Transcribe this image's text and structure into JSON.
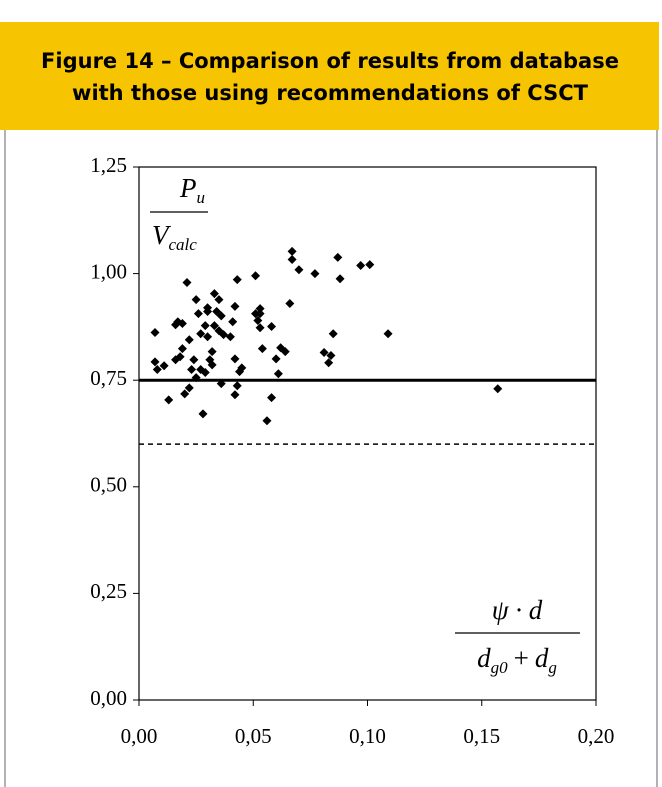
{
  "chart_data": {
    "type": "scatter",
    "title_lines": [
      "Figure 14 – Comparison of results from database",
      "with those using recommendations of CSCT"
    ],
    "y_label": {
      "num": "P",
      "num_sub": "u",
      "den": "V",
      "den_sub": "calc"
    },
    "x_label": {
      "num": "ψ · d",
      "den_1": "d",
      "den_1_sub": "g0",
      "den_op": "+",
      "den_2": "d",
      "den_2_sub": "g"
    },
    "color": "#000000",
    "x": [
      0.007,
      0.008,
      0.007,
      0.011,
      0.013,
      0.016,
      0.017,
      0.019,
      0.019,
      0.016,
      0.018,
      0.021,
      0.022,
      0.023,
      0.024,
      0.02,
      0.022,
      0.025,
      0.025,
      0.027,
      0.026,
      0.027,
      0.029,
      0.028,
      0.029,
      0.03,
      0.03,
      0.03,
      0.031,
      0.032,
      0.032,
      0.033,
      0.035,
      0.035,
      0.033,
      0.037,
      0.036,
      0.034,
      0.041,
      0.042,
      0.04,
      0.042,
      0.044,
      0.045,
      0.042,
      0.043,
      0.036,
      0.043,
      0.051,
      0.051,
      0.053,
      0.053,
      0.052,
      0.053,
      0.054,
      0.056,
      0.058,
      0.058,
      0.06,
      0.061,
      0.062,
      0.064,
      0.066,
      0.067,
      0.067,
      0.07,
      0.077,
      0.081,
      0.083,
      0.084,
      0.085,
      0.087,
      0.088,
      0.097,
      0.101,
      0.109,
      0.157
    ],
    "y": [
      0.793,
      0.775,
      0.862,
      0.784,
      0.704,
      0.88,
      0.887,
      0.883,
      0.824,
      0.798,
      0.805,
      0.979,
      0.845,
      0.775,
      0.798,
      0.718,
      0.732,
      0.756,
      0.939,
      0.775,
      0.906,
      0.859,
      0.768,
      0.671,
      0.878,
      0.92,
      0.911,
      0.852,
      0.798,
      0.786,
      0.817,
      0.878,
      0.866,
      0.939,
      0.953,
      0.857,
      0.901,
      0.911,
      0.887,
      0.923,
      0.852,
      0.8,
      0.77,
      0.779,
      0.716,
      0.737,
      0.742,
      0.986,
      0.995,
      0.906,
      0.906,
      0.918,
      0.89,
      0.873,
      0.824,
      0.655,
      0.709,
      0.876,
      0.8,
      0.765,
      0.826,
      0.817,
      0.93,
      1.052,
      1.033,
      1.009,
      1.0,
      0.815,
      0.791,
      0.808,
      0.859,
      1.038,
      0.988,
      1.019,
      1.021,
      0.859,
      0.73
    ],
    "reference_lines": [
      {
        "value": 0.75,
        "style": "solid"
      },
      {
        "value": 0.6,
        "style": "dashed"
      }
    ],
    "xlim": [
      0,
      0.2
    ],
    "ylim": [
      0,
      1.25
    ],
    "xticks": [
      {
        "value": 0,
        "label": "0,00"
      },
      {
        "value": 0.05,
        "label": "0,05"
      },
      {
        "value": 0.1,
        "label": "0,10"
      },
      {
        "value": 0.15,
        "label": "0,15"
      },
      {
        "value": 0.2,
        "label": "0,20"
      }
    ],
    "yticks": [
      {
        "value": 0,
        "label": "0,00"
      },
      {
        "value": 0.25,
        "label": "0,25"
      },
      {
        "value": 0.5,
        "label": "0,50"
      },
      {
        "value": 0.75,
        "label": "0,75"
      },
      {
        "value": 1,
        "label": "1,00"
      },
      {
        "value": 1.25,
        "label": "1,25"
      }
    ],
    "grid": false
  }
}
